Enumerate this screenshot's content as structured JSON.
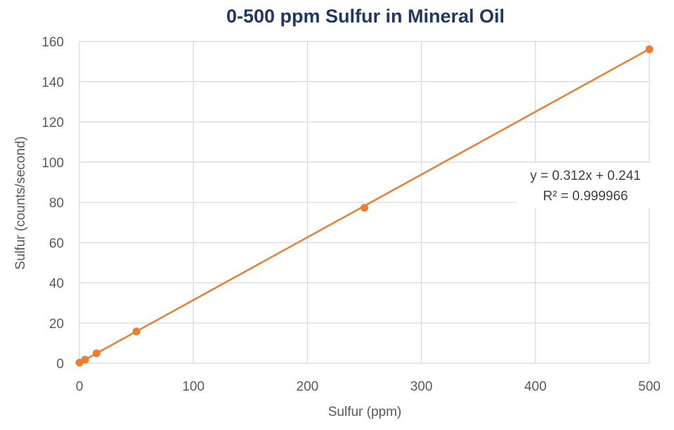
{
  "colors": {
    "title": "#1f3864",
    "series": "#ed7d31",
    "gridline": "#d9d9d9",
    "axis_text": "#595959"
  },
  "chart_data": {
    "type": "scatter",
    "title": "0-500 ppm Sulfur in Mineral Oil",
    "xlabel": "Sulfur (ppm)",
    "ylabel": "Sulfur (counts/second)",
    "xlim": [
      0,
      500
    ],
    "ylim": [
      0,
      160
    ],
    "x_ticks": [
      0,
      100,
      200,
      300,
      400,
      500
    ],
    "y_ticks": [
      0,
      20,
      40,
      60,
      80,
      100,
      120,
      140,
      160
    ],
    "grid": true,
    "legend": "none",
    "series": [
      {
        "x": [
          0,
          5,
          15,
          50,
          250,
          500
        ],
        "y": [
          0.3,
          1.8,
          5.0,
          15.8,
          77.3,
          156.1
        ]
      }
    ],
    "trendline": {
      "type": "linear",
      "slope": 0.312,
      "intercept": 0.241,
      "equation": "y = 0.312x + 0.241",
      "r_squared": "R² = 0.999966"
    }
  }
}
